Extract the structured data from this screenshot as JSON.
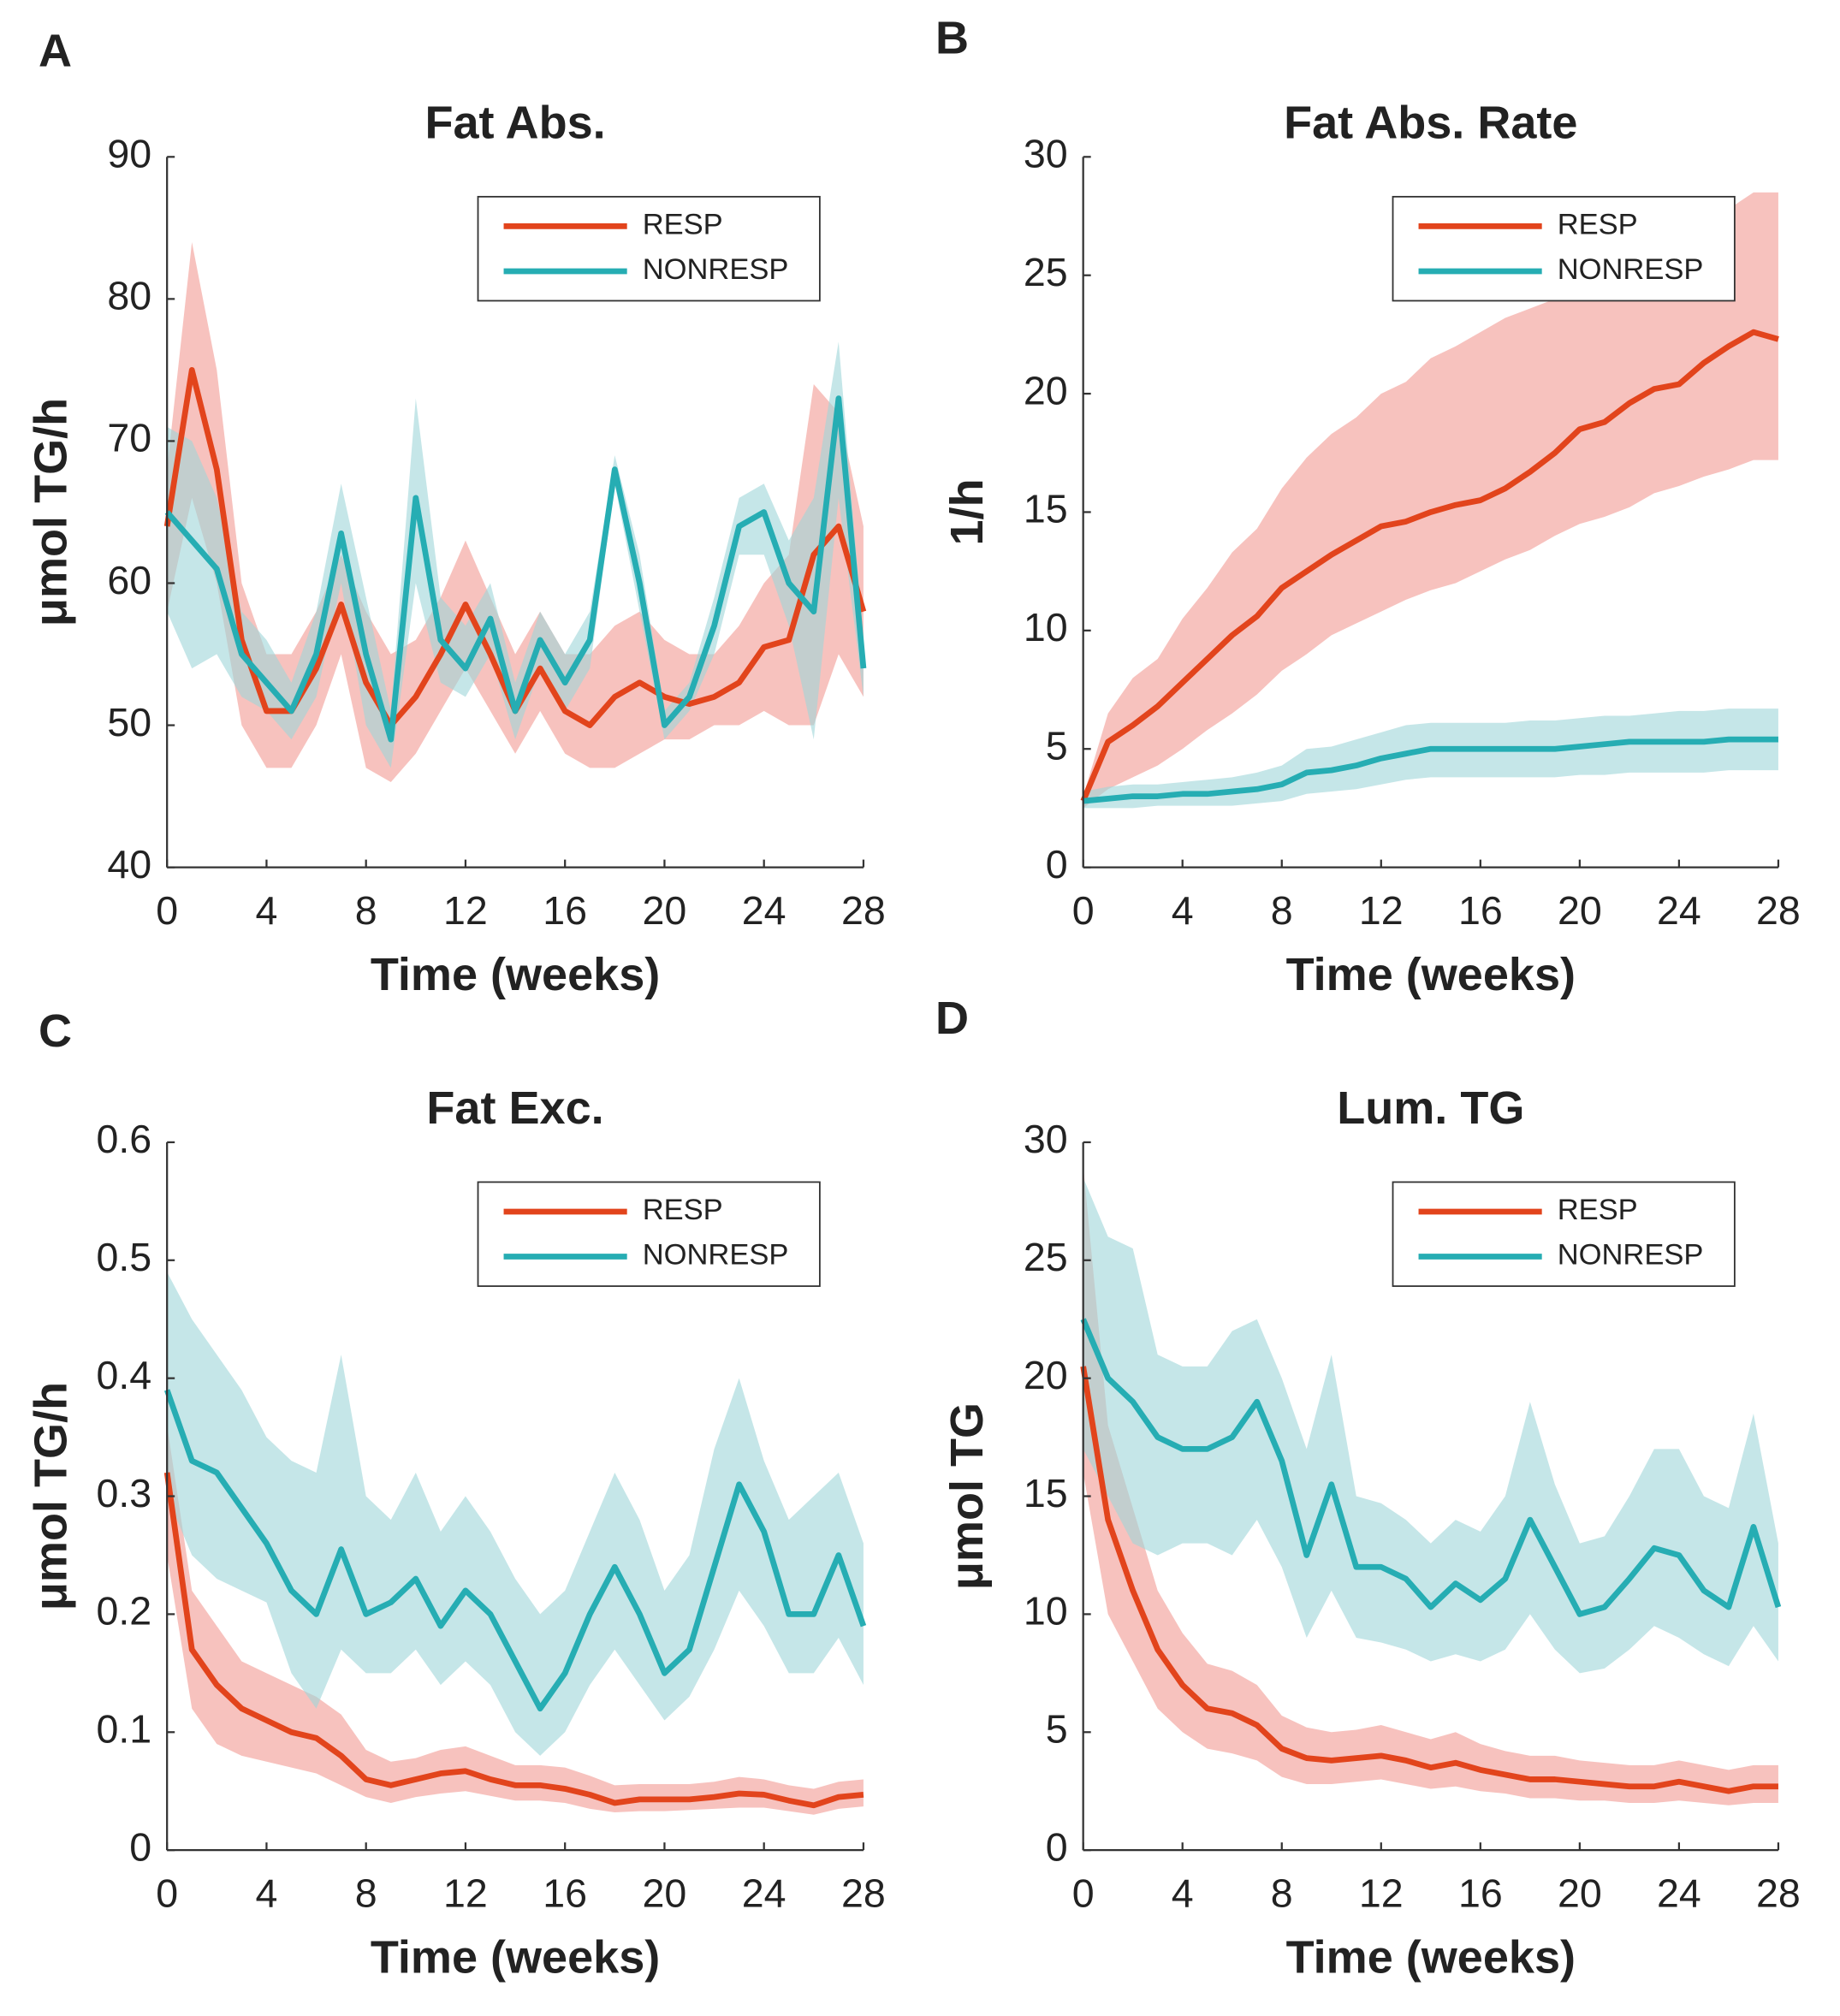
{
  "chart_data": [
    {
      "type": "line",
      "panel": "A",
      "title": "Fat Abs.",
      "xlabel": "Time (weeks)",
      "ylabel": "μmol TG/h",
      "x": [
        0,
        1,
        2,
        3,
        4,
        5,
        6,
        7,
        8,
        9,
        10,
        11,
        12,
        13,
        14,
        15,
        16,
        17,
        18,
        19,
        20,
        21,
        22,
        23,
        24,
        25,
        26,
        27,
        28
      ],
      "xlim": [
        0,
        28
      ],
      "xticks": [
        0,
        4,
        8,
        12,
        16,
        20,
        24,
        28
      ],
      "ylim": [
        40,
        90
      ],
      "yticks": [
        40,
        50,
        60,
        70,
        80,
        90
      ],
      "grid": false,
      "legend": "upper right",
      "series": [
        {
          "name": "RESP",
          "color": "#e2441c",
          "band_color": "#f29a93",
          "values": [
            64,
            75,
            68,
            56,
            51,
            51,
            54,
            58.5,
            53,
            50,
            52,
            55,
            58.5,
            55,
            51,
            54,
            51,
            50,
            52,
            53,
            52,
            51.5,
            52,
            53,
            55.5,
            56,
            62,
            64,
            58
          ],
          "lower": [
            58,
            66,
            60,
            50,
            47,
            47,
            50,
            55,
            47,
            46,
            48,
            51,
            54,
            51,
            48,
            51,
            48,
            47,
            47,
            48,
            49,
            49,
            50,
            50,
            51,
            50,
            50,
            55,
            52
          ],
          "upper": [
            68,
            84,
            75,
            60,
            55,
            55,
            58,
            62,
            58,
            55,
            56,
            59,
            63,
            59,
            55,
            58,
            55,
            55,
            57,
            58,
            56,
            55,
            55,
            57,
            60,
            62,
            74,
            72,
            64
          ]
        },
        {
          "name": "NONRESP",
          "color": "#26adb3",
          "band_color": "#9fd6d9",
          "values": [
            65,
            63,
            61,
            55,
            53,
            51,
            55,
            63.5,
            55,
            49,
            66,
            56,
            54,
            57.5,
            51,
            56,
            53,
            56,
            68,
            60,
            50,
            52,
            57,
            64,
            65,
            60,
            58,
            73,
            54
          ],
          "lower": [
            58,
            54,
            55,
            52,
            51,
            49,
            52,
            60,
            50,
            47,
            60,
            53,
            52,
            55,
            49,
            54,
            51,
            54,
            67,
            58,
            49,
            51,
            55,
            62,
            62,
            57,
            49,
            66,
            52
          ],
          "upper": [
            71,
            70,
            66,
            58,
            56,
            53,
            58,
            67,
            59,
            51,
            73,
            59,
            57,
            60,
            53,
            58,
            55,
            58,
            69,
            62,
            51,
            53,
            59,
            66,
            67,
            63,
            66,
            77,
            56
          ]
        }
      ]
    },
    {
      "type": "line",
      "panel": "B",
      "title": "Fat Abs. Rate",
      "xlabel": "Time (weeks)",
      "ylabel": "1/h",
      "x": [
        0,
        1,
        2,
        3,
        4,
        5,
        6,
        7,
        8,
        9,
        10,
        11,
        12,
        13,
        14,
        15,
        16,
        17,
        18,
        19,
        20,
        21,
        22,
        23,
        24,
        25,
        26,
        27,
        28
      ],
      "xlim": [
        0,
        28
      ],
      "xticks": [
        0,
        4,
        8,
        12,
        16,
        20,
        24,
        28
      ],
      "ylim": [
        0,
        30
      ],
      "yticks": [
        0,
        5,
        10,
        15,
        20,
        25,
        30
      ],
      "grid": false,
      "legend": "upper right",
      "series": [
        {
          "name": "RESP",
          "color": "#e2441c",
          "band_color": "#f29a93",
          "values": [
            2.8,
            5.3,
            6,
            6.8,
            7.8,
            8.8,
            9.8,
            10.6,
            11.8,
            12.5,
            13.2,
            13.8,
            14.4,
            14.6,
            15,
            15.3,
            15.5,
            16,
            16.7,
            17.5,
            18.5,
            18.8,
            19.6,
            20.2,
            20.4,
            21.3,
            22,
            22.6,
            22.3
          ],
          "lower": [
            2.5,
            3.3,
            3.8,
            4.3,
            5,
            5.8,
            6.5,
            7.3,
            8.3,
            9,
            9.8,
            10.3,
            10.8,
            11.3,
            11.7,
            12,
            12.5,
            13,
            13.4,
            14,
            14.5,
            14.8,
            15.2,
            15.8,
            16.1,
            16.5,
            16.8,
            17.2,
            17.2
          ],
          "upper": [
            3,
            6.5,
            8,
            8.8,
            10.5,
            11.8,
            13.3,
            14.3,
            16,
            17.3,
            18.3,
            19,
            20,
            20.5,
            21.5,
            22,
            22.6,
            23.2,
            23.6,
            24,
            24.3,
            24.8,
            25.6,
            26,
            26.3,
            27,
            27.8,
            28.5,
            28.5
          ]
        },
        {
          "name": "NONRESP",
          "color": "#26adb3",
          "band_color": "#9fd6d9",
          "values": [
            2.8,
            2.9,
            3,
            3,
            3.1,
            3.1,
            3.2,
            3.3,
            3.5,
            4,
            4.1,
            4.3,
            4.6,
            4.8,
            5,
            5,
            5,
            5,
            5,
            5,
            5.1,
            5.2,
            5.3,
            5.3,
            5.3,
            5.3,
            5.4,
            5.4,
            5.4
          ],
          "lower": [
            2.5,
            2.5,
            2.5,
            2.6,
            2.6,
            2.6,
            2.6,
            2.7,
            2.8,
            3.1,
            3.2,
            3.3,
            3.5,
            3.7,
            3.8,
            3.8,
            3.8,
            3.8,
            3.8,
            3.8,
            3.9,
            3.9,
            4,
            4,
            4,
            4,
            4.1,
            4.1,
            4.1
          ],
          "upper": [
            3.2,
            3.4,
            3.5,
            3.5,
            3.6,
            3.7,
            3.8,
            4,
            4.3,
            5,
            5.1,
            5.4,
            5.7,
            6,
            6.1,
            6.1,
            6.1,
            6.1,
            6.2,
            6.2,
            6.3,
            6.4,
            6.4,
            6.5,
            6.6,
            6.6,
            6.7,
            6.7,
            6.7
          ]
        }
      ]
    },
    {
      "type": "line",
      "panel": "C",
      "title": "Fat Exc.",
      "xlabel": "Time (weeks)",
      "ylabel": "μmol TG/h",
      "x": [
        0,
        1,
        2,
        3,
        4,
        5,
        6,
        7,
        8,
        9,
        10,
        11,
        12,
        13,
        14,
        15,
        16,
        17,
        18,
        19,
        20,
        21,
        22,
        23,
        24,
        25,
        26,
        27,
        28
      ],
      "xlim": [
        0,
        28
      ],
      "xticks": [
        0,
        4,
        8,
        12,
        16,
        20,
        24,
        28
      ],
      "ylim": [
        0,
        0.6
      ],
      "yticks": [
        0,
        0.1,
        0.2,
        0.3,
        0.4,
        0.5,
        0.6
      ],
      "grid": false,
      "legend": "upper right",
      "series": [
        {
          "name": "RESP",
          "color": "#e2441c",
          "band_color": "#f29a93",
          "values": [
            0.32,
            0.17,
            0.14,
            0.12,
            0.11,
            0.1,
            0.095,
            0.08,
            0.06,
            0.055,
            0.06,
            0.065,
            0.067,
            0.06,
            0.055,
            0.055,
            0.052,
            0.047,
            0.04,
            0.043,
            0.043,
            0.043,
            0.045,
            0.048,
            0.047,
            0.042,
            0.038,
            0.045,
            0.047
          ],
          "lower": [
            0.25,
            0.12,
            0.09,
            0.08,
            0.075,
            0.07,
            0.065,
            0.055,
            0.045,
            0.04,
            0.045,
            0.048,
            0.05,
            0.046,
            0.042,
            0.042,
            0.04,
            0.035,
            0.032,
            0.033,
            0.033,
            0.034,
            0.035,
            0.036,
            0.036,
            0.033,
            0.03,
            0.035,
            0.037
          ],
          "upper": [
            0.36,
            0.22,
            0.19,
            0.16,
            0.15,
            0.14,
            0.13,
            0.115,
            0.085,
            0.075,
            0.078,
            0.085,
            0.088,
            0.08,
            0.072,
            0.072,
            0.07,
            0.063,
            0.055,
            0.056,
            0.056,
            0.056,
            0.058,
            0.062,
            0.06,
            0.055,
            0.052,
            0.058,
            0.06
          ]
        },
        {
          "name": "NONRESP",
          "color": "#26adb3",
          "band_color": "#9fd6d9",
          "values": [
            0.39,
            0.33,
            0.32,
            0.29,
            0.26,
            0.22,
            0.2,
            0.255,
            0.2,
            0.21,
            0.23,
            0.19,
            0.22,
            0.2,
            0.16,
            0.12,
            0.15,
            0.2,
            0.24,
            0.2,
            0.15,
            0.17,
            0.24,
            0.31,
            0.27,
            0.2,
            0.2,
            0.25,
            0.19
          ],
          "lower": [
            0.3,
            0.25,
            0.23,
            0.22,
            0.21,
            0.15,
            0.12,
            0.17,
            0.15,
            0.15,
            0.17,
            0.14,
            0.16,
            0.14,
            0.1,
            0.08,
            0.1,
            0.14,
            0.17,
            0.14,
            0.11,
            0.13,
            0.17,
            0.22,
            0.19,
            0.15,
            0.15,
            0.18,
            0.14
          ],
          "upper": [
            0.49,
            0.45,
            0.42,
            0.39,
            0.35,
            0.33,
            0.32,
            0.42,
            0.3,
            0.28,
            0.32,
            0.27,
            0.3,
            0.27,
            0.23,
            0.2,
            0.22,
            0.27,
            0.32,
            0.28,
            0.22,
            0.25,
            0.34,
            0.4,
            0.33,
            0.28,
            0.3,
            0.32,
            0.26
          ]
        }
      ]
    },
    {
      "type": "line",
      "panel": "D",
      "title": "Lum. TG",
      "xlabel": "Time (weeks)",
      "ylabel": "μmol TG",
      "x": [
        0,
        1,
        2,
        3,
        4,
        5,
        6,
        7,
        8,
        9,
        10,
        11,
        12,
        13,
        14,
        15,
        16,
        17,
        18,
        19,
        20,
        21,
        22,
        23,
        24,
        25,
        26,
        27,
        28
      ],
      "xlim": [
        0,
        28
      ],
      "xticks": [
        0,
        4,
        8,
        12,
        16,
        20,
        24,
        28
      ],
      "ylim": [
        0,
        30
      ],
      "yticks": [
        0,
        5,
        10,
        15,
        20,
        25,
        30
      ],
      "grid": false,
      "legend": "upper right",
      "series": [
        {
          "name": "RESP",
          "color": "#e2441c",
          "band_color": "#f29a93",
          "values": [
            20.5,
            14,
            11,
            8.5,
            7,
            6,
            5.8,
            5.3,
            4.3,
            3.9,
            3.8,
            3.9,
            4,
            3.8,
            3.5,
            3.7,
            3.4,
            3.2,
            3,
            3,
            2.9,
            2.8,
            2.7,
            2.7,
            2.9,
            2.7,
            2.5,
            2.7,
            2.7
          ],
          "lower": [
            16,
            10,
            8,
            6,
            5,
            4.3,
            4.1,
            3.8,
            3.1,
            2.8,
            2.8,
            2.9,
            3,
            2.8,
            2.6,
            2.7,
            2.5,
            2.4,
            2.2,
            2.2,
            2.1,
            2.1,
            2,
            2,
            2.1,
            2,
            1.9,
            2,
            2
          ],
          "upper": [
            29,
            18,
            14.5,
            11,
            9.2,
            7.9,
            7.6,
            7,
            5.7,
            5.2,
            5,
            5.1,
            5.3,
            5,
            4.7,
            5,
            4.5,
            4.2,
            4,
            4,
            3.8,
            3.7,
            3.6,
            3.6,
            3.8,
            3.6,
            3.4,
            3.6,
            3.6
          ]
        },
        {
          "name": "NONRESP",
          "color": "#26adb3",
          "band_color": "#9fd6d9",
          "values": [
            22.5,
            20,
            19,
            17.5,
            17,
            17,
            17.5,
            19,
            16.5,
            12.5,
            15.5,
            12,
            12,
            11.5,
            10.3,
            11.3,
            10.6,
            11.5,
            14,
            12,
            10,
            10.3,
            11.5,
            12.8,
            12.5,
            11,
            10.3,
            13.7,
            10.3
          ],
          "lower": [
            17,
            15,
            13,
            12.5,
            13,
            13,
            12.5,
            14,
            12,
            9,
            11,
            9,
            8.8,
            8.5,
            8,
            8.3,
            8,
            8.5,
            10,
            8.5,
            7.5,
            7.7,
            8.5,
            9.5,
            9,
            8.3,
            7.8,
            9.5,
            8
          ],
          "upper": [
            28.5,
            26,
            25.5,
            21,
            20.5,
            20.5,
            22,
            22.5,
            20,
            17,
            21,
            15,
            14.7,
            14,
            13,
            14,
            13.5,
            15,
            19,
            15.5,
            13,
            13.3,
            15,
            17,
            17,
            15,
            14.5,
            18.5,
            13
          ]
        }
      ]
    }
  ]
}
